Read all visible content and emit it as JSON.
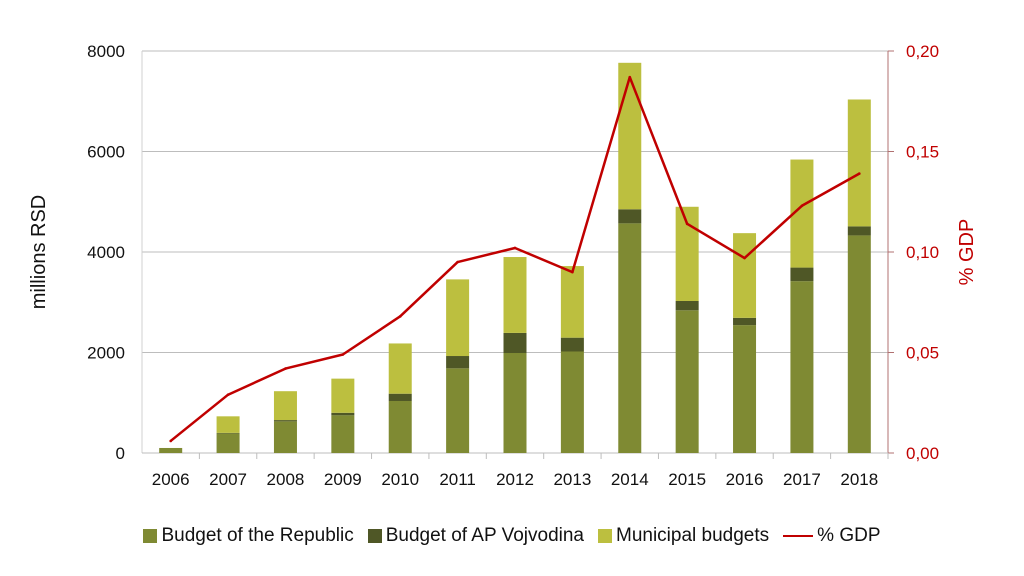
{
  "chart_data": {
    "type": "bar",
    "categories": [
      "2006",
      "2007",
      "2008",
      "2009",
      "2010",
      "2011",
      "2012",
      "2013",
      "2014",
      "2015",
      "2016",
      "2017",
      "2018"
    ],
    "series": [
      {
        "name": "Budget of the Republic",
        "kind": "stacked-bar",
        "color": "#7f8a33",
        "values": [
          100,
          390,
          630,
          750,
          1035,
          1685,
          1990,
          2020,
          4570,
          2840,
          2545,
          3420,
          4330
        ]
      },
      {
        "name": "Budget of AP Vojvodina",
        "kind": "stacked-bar",
        "color": "#4f5726",
        "values": [
          0,
          10,
          25,
          50,
          145,
          245,
          400,
          275,
          280,
          185,
          145,
          270,
          180
        ]
      },
      {
        "name": "Municipal budgets",
        "kind": "stacked-bar",
        "color": "#bcbf3f",
        "values": [
          0,
          330,
          575,
          680,
          1000,
          1525,
          1510,
          1425,
          2915,
          1875,
          1685,
          2150,
          2525
        ]
      },
      {
        "name": "% GDP",
        "kind": "line",
        "axis": "right",
        "color": "#c00000",
        "values": [
          0.006,
          0.029,
          0.042,
          0.049,
          0.068,
          0.095,
          0.102,
          0.09,
          0.187,
          0.114,
          0.097,
          0.123,
          0.139
        ]
      }
    ],
    "ylabel": "millions RSD",
    "y2label": "% GDP",
    "ylim": [
      0,
      8000
    ],
    "y2lim": [
      0,
      0.2
    ],
    "yticks": [
      "0",
      "2000",
      "4000",
      "6000",
      "8000"
    ],
    "y2ticks": [
      "0,00",
      "0,05",
      "0,10",
      "0,15",
      "0,20"
    ],
    "grid": true,
    "legend": "bottom"
  }
}
